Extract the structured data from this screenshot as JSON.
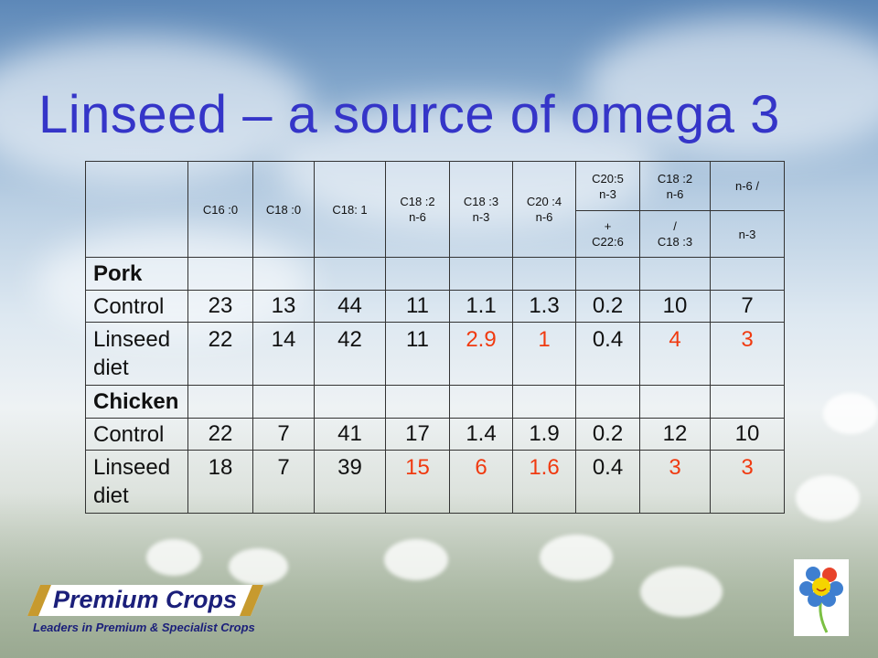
{
  "slide": {
    "title": "Linseed – a source of omega 3"
  },
  "table": {
    "header_row1": [
      "",
      "C16 :0",
      "C18 :0",
      "C18: 1",
      "C18 :2\nn-6",
      "C18 :3\nn-3",
      "C20 :4\nn-6",
      "C20:5\nn-3",
      "C18 :2\nn-6",
      "n-6 /"
    ],
    "header_row2": [
      "+\nC22:6",
      "/\nC18 :3",
      "n-3"
    ],
    "groups": [
      {
        "name": "Pork",
        "rows": [
          {
            "label": "Control",
            "values": [
              "23",
              "13",
              "44",
              "11",
              "1.1",
              "1.3",
              "0.2",
              "10",
              "7"
            ],
            "highlight": [
              false,
              false,
              false,
              false,
              false,
              false,
              false,
              false,
              false
            ]
          },
          {
            "label": "Linseed\ndiet",
            "values": [
              "22",
              "14",
              "42",
              "11",
              "2.9",
              "1",
              "0.4",
              "4",
              "3"
            ],
            "highlight": [
              false,
              false,
              false,
              false,
              true,
              true,
              false,
              true,
              true
            ]
          }
        ]
      },
      {
        "name": "Chicken",
        "rows": [
          {
            "label": "Control",
            "values": [
              "22",
              "7",
              "41",
              "17",
              "1.4",
              "1.9",
              "0.2",
              "12",
              "10"
            ],
            "highlight": [
              false,
              false,
              false,
              false,
              false,
              false,
              false,
              false,
              false
            ]
          },
          {
            "label": "Linseed\ndiet",
            "values": [
              "18",
              "7",
              "39",
              "15",
              "6",
              "1.6",
              "0.4",
              "3",
              "3"
            ],
            "highlight": [
              false,
              false,
              false,
              true,
              true,
              true,
              false,
              true,
              true
            ]
          }
        ]
      }
    ]
  },
  "logo": {
    "name": "Premium Crops",
    "tagline": "Leaders in Premium & Specialist Crops"
  },
  "colors": {
    "title": "#3535c8",
    "highlight": "#f03a10",
    "logo_gold": "#c79a2e",
    "logo_navy": "#1b1f7a"
  }
}
